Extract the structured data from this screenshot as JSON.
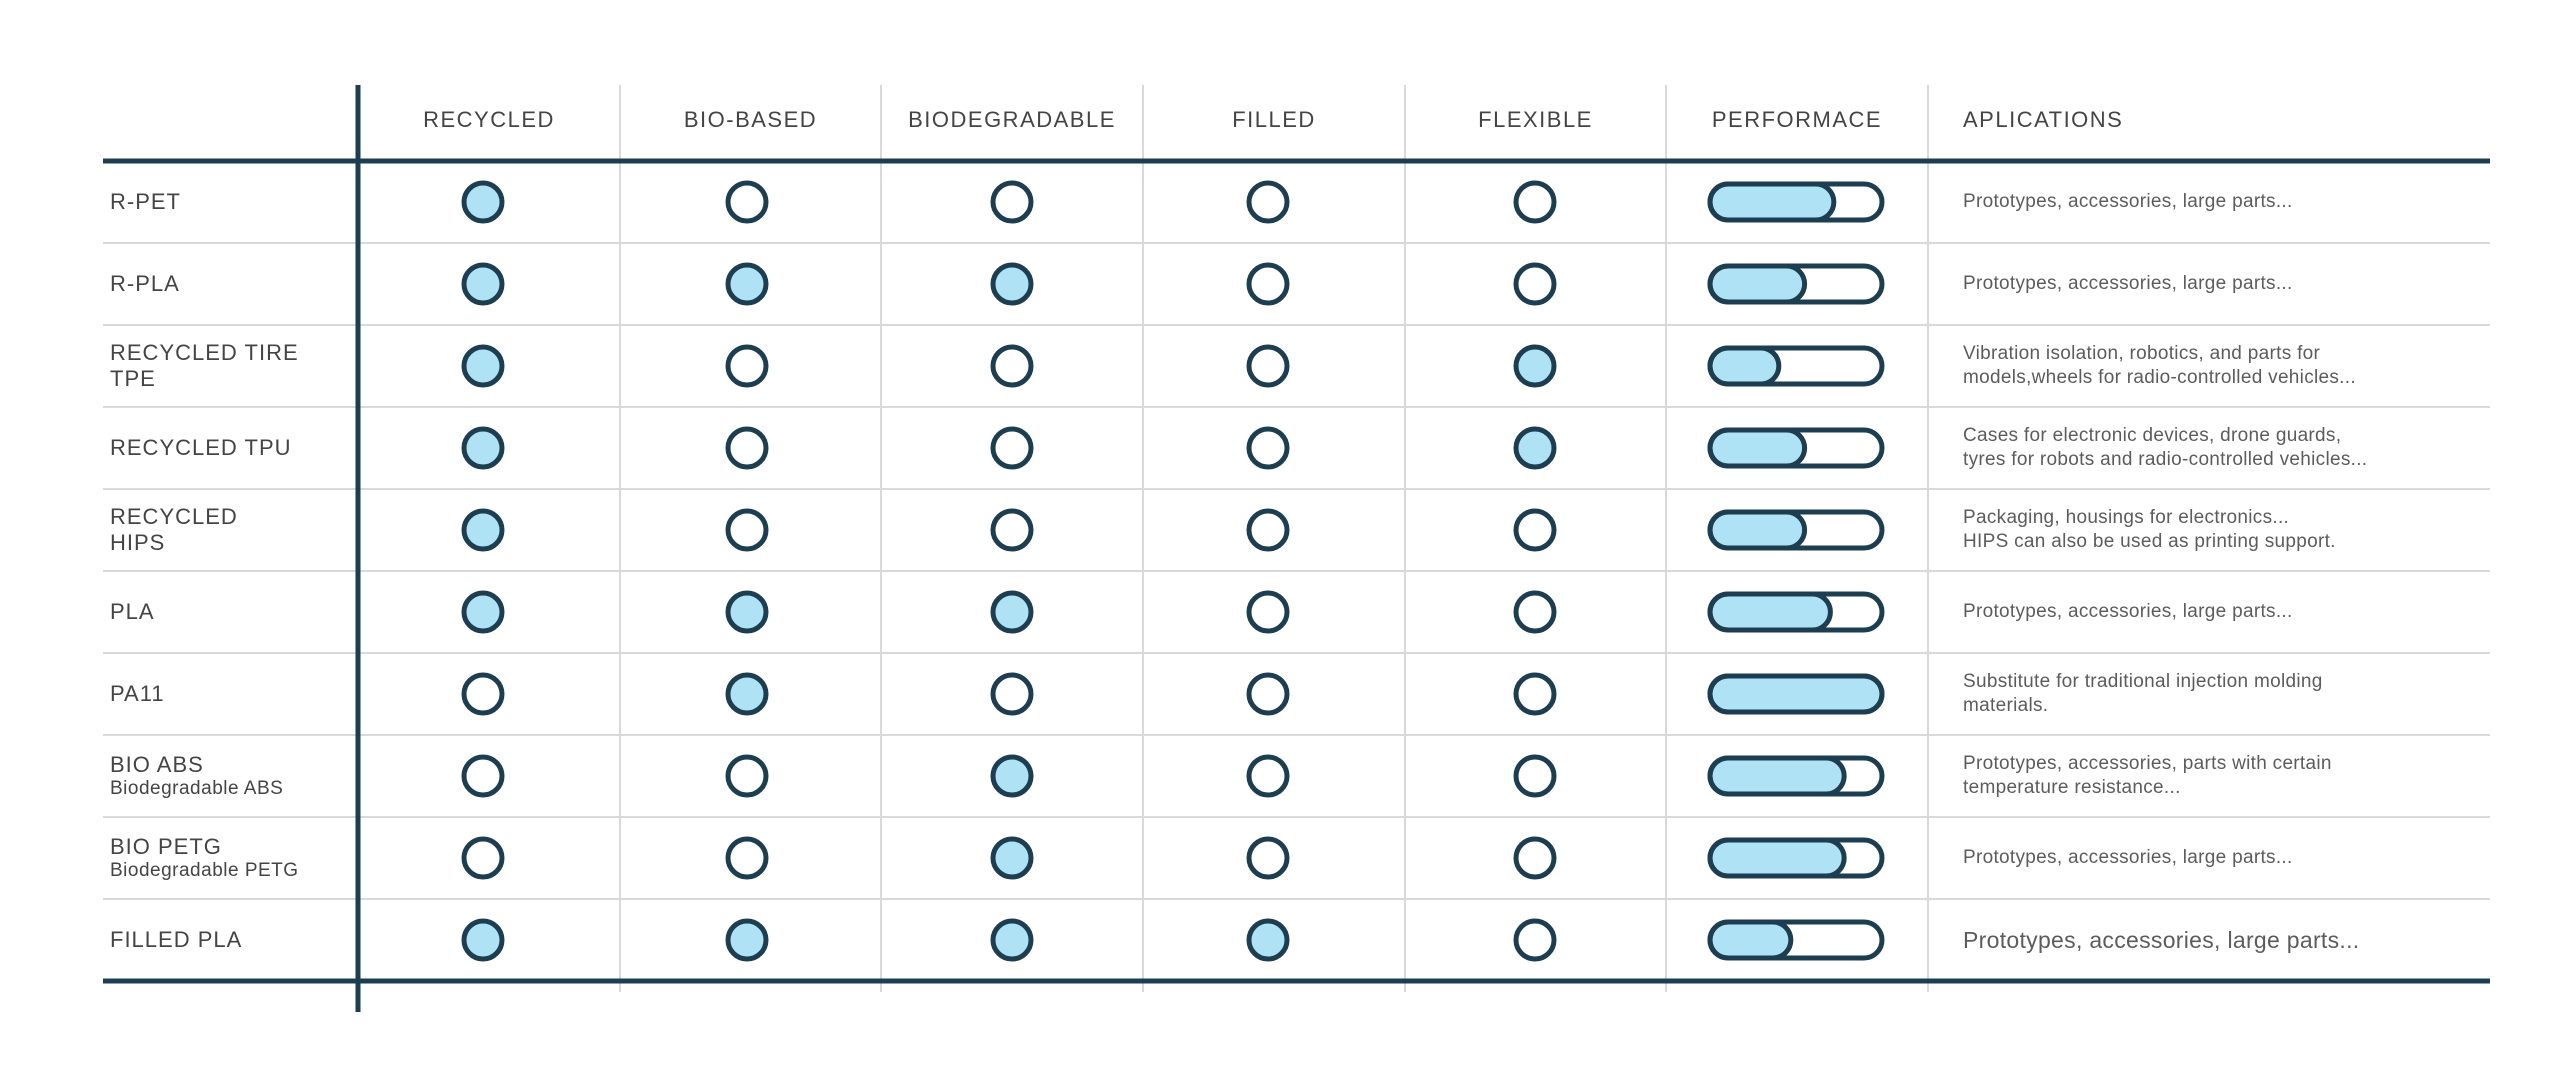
{
  "colors": {
    "line": "#1d3d50",
    "fill": "#aee2f4",
    "grid": "#d9d9d9",
    "text": "#444444"
  },
  "header": {
    "columns": [
      "RECYCLED",
      "BIO-BASED",
      "BIODEGRADABLE",
      "FILLED",
      "FLEXIBLE",
      "PERFORMACE"
    ],
    "applications": "APLICATIONS"
  },
  "chart_data": {
    "type": "table",
    "columns": [
      "RECYCLED",
      "BIO-BASED",
      "BIODEGRADABLE",
      "FILLED",
      "FLEXIBLE"
    ],
    "performance_column": "PERFORMACE",
    "applications_column": "APLICATIONS",
    "rows": [
      {
        "name": "R-PET",
        "sub": "",
        "flags": [
          true,
          false,
          false,
          false,
          false
        ],
        "performance": 0.72,
        "applications": "Prototypes, accessories, large parts...",
        "large": false
      },
      {
        "name": "R-PLA",
        "sub": "",
        "flags": [
          true,
          true,
          true,
          false,
          false
        ],
        "performance": 0.55,
        "applications": "Prototypes, accessories, large parts...",
        "large": false
      },
      {
        "name": "RECYCLED TIRE\nTPE",
        "sub": "",
        "flags": [
          true,
          false,
          false,
          false,
          true
        ],
        "performance": 0.4,
        "applications": "Vibration isolation, robotics, and parts for\nmodels,wheels for radio-controlled vehicles...",
        "large": false
      },
      {
        "name": "RECYCLED TPU",
        "sub": "",
        "flags": [
          true,
          false,
          false,
          false,
          true
        ],
        "performance": 0.55,
        "applications": "Cases for electronic devices, drone guards,\ntyres for robots and radio-controlled vehicles...",
        "large": false
      },
      {
        "name": "RECYCLED\nHIPS",
        "sub": "",
        "flags": [
          true,
          false,
          false,
          false,
          false
        ],
        "performance": 0.55,
        "applications": "Packaging, housings for electronics...\nHIPS can also be used as printing support.",
        "large": false
      },
      {
        "name": "PLA",
        "sub": "",
        "flags": [
          true,
          true,
          true,
          false,
          false
        ],
        "performance": 0.7,
        "applications": "Prototypes, accessories, large parts...",
        "large": false
      },
      {
        "name": "PA11",
        "sub": "",
        "flags": [
          false,
          true,
          false,
          false,
          false
        ],
        "performance": 1.0,
        "applications": "Substitute for traditional injection molding\nmaterials.",
        "large": false
      },
      {
        "name": "BIO ABS",
        "sub": "Biodegradable ABS",
        "flags": [
          false,
          false,
          true,
          false,
          false
        ],
        "performance": 0.78,
        "applications": "Prototypes, accessories, parts with certain\ntemperature resistance...",
        "large": false
      },
      {
        "name": "BIO PETG",
        "sub": "Biodegradable PETG",
        "flags": [
          false,
          false,
          true,
          false,
          false
        ],
        "performance": 0.78,
        "applications": "Prototypes, accessories, large parts...",
        "large": false
      },
      {
        "name": "FILLED PLA",
        "sub": "",
        "flags": [
          true,
          true,
          true,
          true,
          false
        ],
        "performance": 0.47,
        "applications": "Prototypes, accessories, large parts...",
        "large": true
      }
    ]
  }
}
